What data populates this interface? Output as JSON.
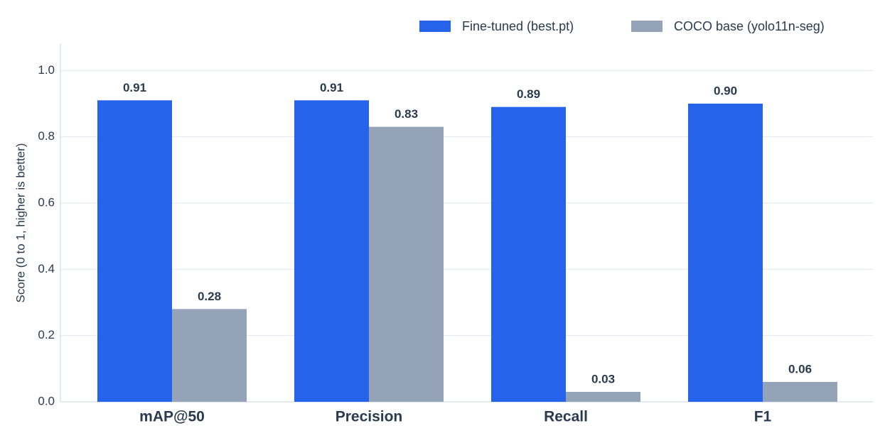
{
  "chart_data": {
    "type": "bar",
    "y_label": "Score (0 to 1, higher is better)",
    "categories": [
      "mAP@50",
      "Precision",
      "Recall",
      "F1"
    ],
    "series": [
      {
        "name": "Fine-tuned (best.pt)",
        "color": "#2563eb",
        "values": [
          0.91,
          0.91,
          0.89,
          0.9
        ],
        "value_labels": [
          "0.91",
          "0.91",
          "0.89",
          "0.90"
        ]
      },
      {
        "name": "COCO base (yolo11n-seg)",
        "color": "#94a3b8",
        "values": [
          0.28,
          0.83,
          0.03,
          0.06
        ],
        "value_labels": [
          "0.28",
          "0.83",
          "0.03",
          "0.06"
        ]
      }
    ],
    "ylim": [
      0,
      1.08
    ],
    "yticks": [
      {
        "value": 0,
        "label": "0.0"
      },
      0.2,
      0.4,
      0.6,
      0.8,
      {
        "value": 1,
        "label": "1.0"
      }
    ],
    "grid": true,
    "legend": "top-right"
  }
}
